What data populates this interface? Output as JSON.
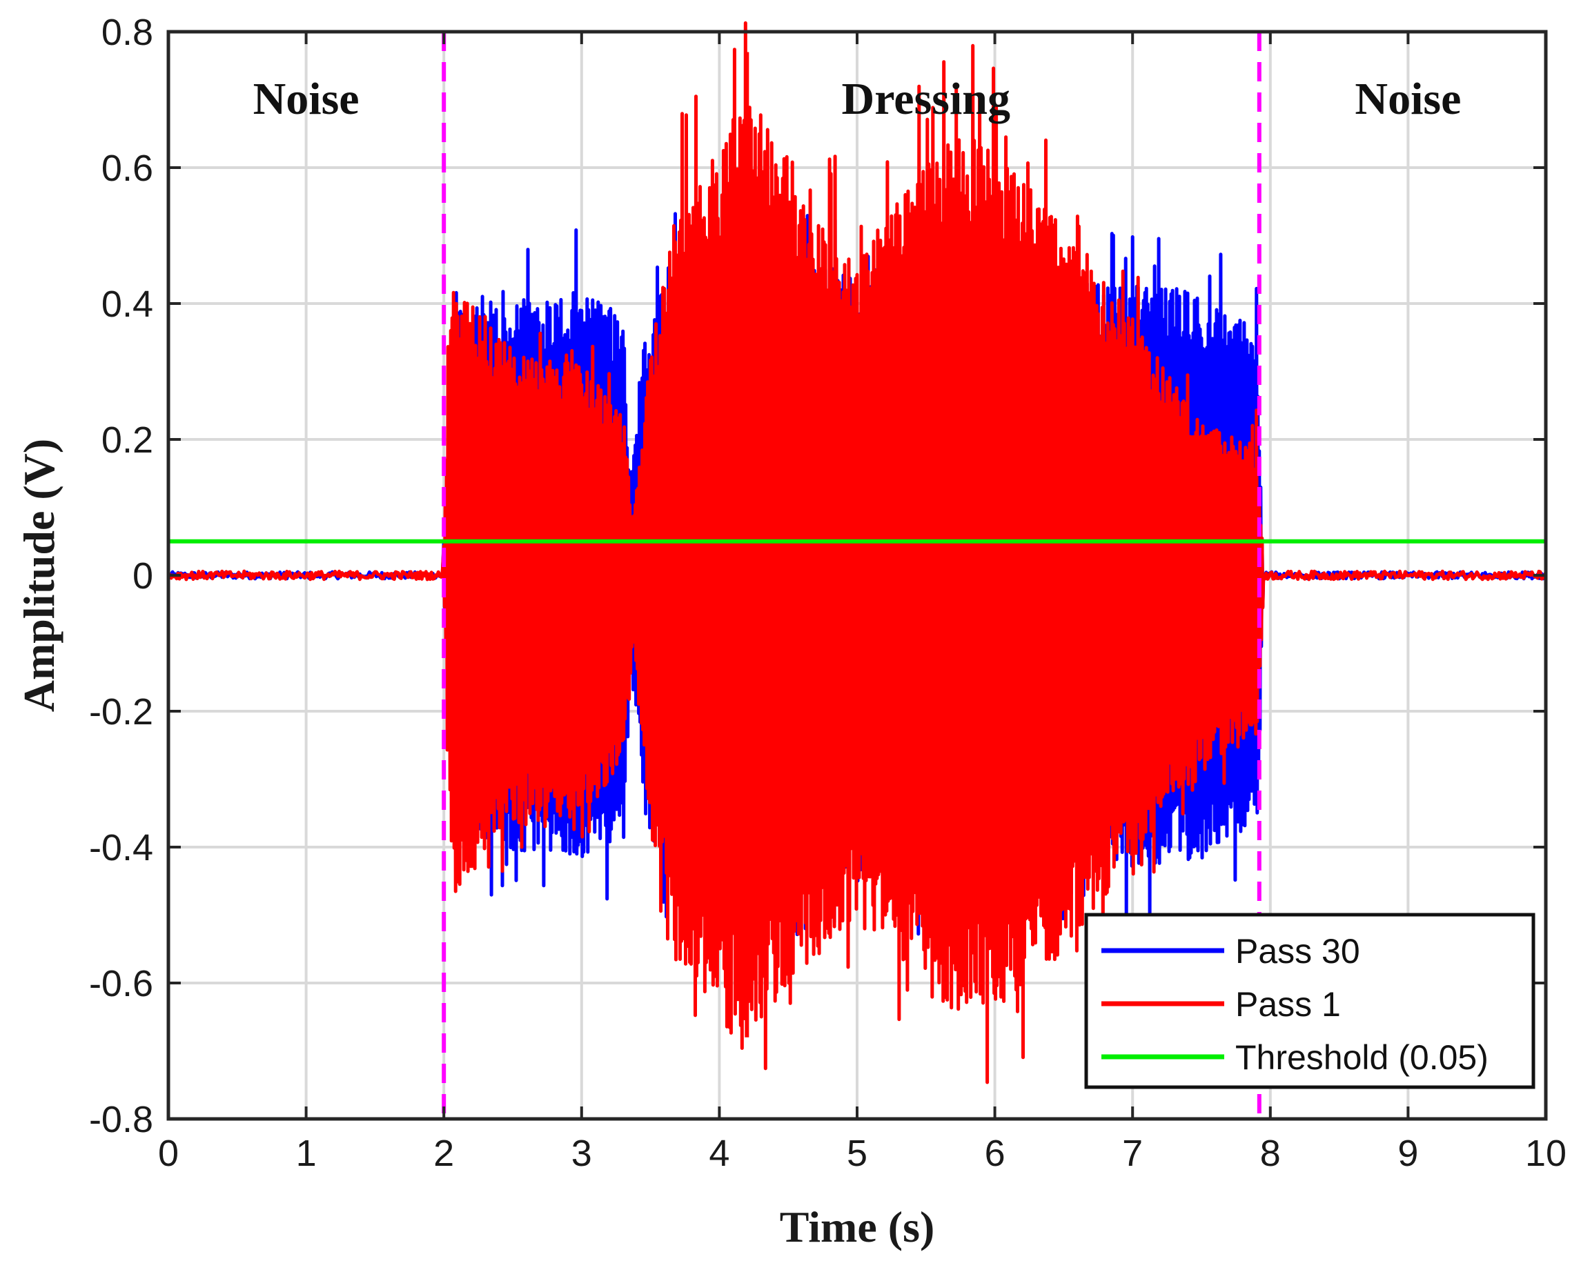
{
  "chart_data": {
    "type": "line",
    "title": "",
    "xlabel": "Time (s)",
    "ylabel": "Amplitude (V)",
    "xlim": [
      0,
      10
    ],
    "ylim": [
      -0.8,
      0.8
    ],
    "grid": true,
    "x_ticks": [
      0,
      1,
      2,
      3,
      4,
      5,
      6,
      7,
      8,
      9,
      10
    ],
    "x_tick_labels": [
      "0",
      "1",
      "2",
      "3",
      "4",
      "5",
      "6",
      "7",
      "8",
      "9",
      "10"
    ],
    "y_ticks": [
      -0.8,
      -0.6,
      -0.4,
      -0.2,
      0,
      0.2,
      0.4,
      0.6,
      0.8
    ],
    "y_tick_labels": [
      "-0.8",
      "-0.6",
      "-0.4",
      "-0.2",
      "0",
      "0.2",
      "0.4",
      "0.6",
      "0.8"
    ],
    "region_labels": [
      {
        "text": "Noise",
        "x": 1.0
      },
      {
        "text": "Dressing",
        "x": 5.5
      },
      {
        "text": "Noise",
        "x": 9.0
      }
    ],
    "boundaries": [
      {
        "x": 2.0,
        "color": "#ff00ff",
        "style": "dashed"
      },
      {
        "x": 7.92,
        "color": "#ff00ff",
        "style": "dashed"
      }
    ],
    "legend_position": "bottom-right",
    "series": [
      {
        "name": "Pass 30",
        "color": "#0000ff",
        "noise_amplitude": 0.005,
        "envelope": {
          "t": [
            2.0,
            2.1,
            2.5,
            3.0,
            3.3,
            3.35,
            3.45,
            3.6,
            4.0,
            4.5,
            5.0,
            5.5,
            6.0,
            6.5,
            7.0,
            7.5,
            7.9,
            7.94
          ],
          "upper": [
            0.05,
            0.36,
            0.37,
            0.38,
            0.36,
            0.1,
            0.32,
            0.4,
            0.41,
            0.41,
            0.41,
            0.41,
            0.4,
            0.39,
            0.39,
            0.38,
            0.33,
            0.05
          ],
          "lower": [
            -0.05,
            -0.36,
            -0.37,
            -0.38,
            -0.36,
            -0.1,
            -0.32,
            -0.4,
            -0.41,
            -0.41,
            -0.41,
            -0.41,
            -0.4,
            -0.39,
            -0.39,
            -0.38,
            -0.33,
            -0.05
          ]
        },
        "peak_max": 0.43,
        "peak_min": -0.42
      },
      {
        "name": "Pass 1",
        "color": "#ff0000",
        "noise_amplitude": 0.006,
        "envelope": {
          "t": [
            2.0,
            2.05,
            2.3,
            2.5,
            3.0,
            3.3,
            3.37,
            3.5,
            3.7,
            4.0,
            4.2,
            4.5,
            5.0,
            5.5,
            5.8,
            6.0,
            6.5,
            7.0,
            7.5,
            7.9,
            7.94
          ],
          "upper": [
            0.05,
            0.4,
            0.35,
            0.3,
            0.28,
            0.22,
            0.07,
            0.3,
            0.5,
            0.58,
            0.68,
            0.52,
            0.43,
            0.56,
            0.6,
            0.57,
            0.47,
            0.35,
            0.2,
            0.18,
            0.05
          ],
          "lower": [
            -0.05,
            -0.43,
            -0.38,
            -0.34,
            -0.32,
            -0.26,
            -0.08,
            -0.35,
            -0.52,
            -0.6,
            -0.62,
            -0.55,
            -0.45,
            -0.55,
            -0.6,
            -0.58,
            -0.5,
            -0.38,
            -0.25,
            -0.22,
            -0.05
          ]
        },
        "peak_max": 0.77,
        "peak_min": -0.68
      },
      {
        "name": "Threshold (0.05)",
        "color": "#00ee00",
        "x": [
          0,
          10
        ],
        "y": [
          0.05,
          0.05
        ]
      }
    ]
  }
}
